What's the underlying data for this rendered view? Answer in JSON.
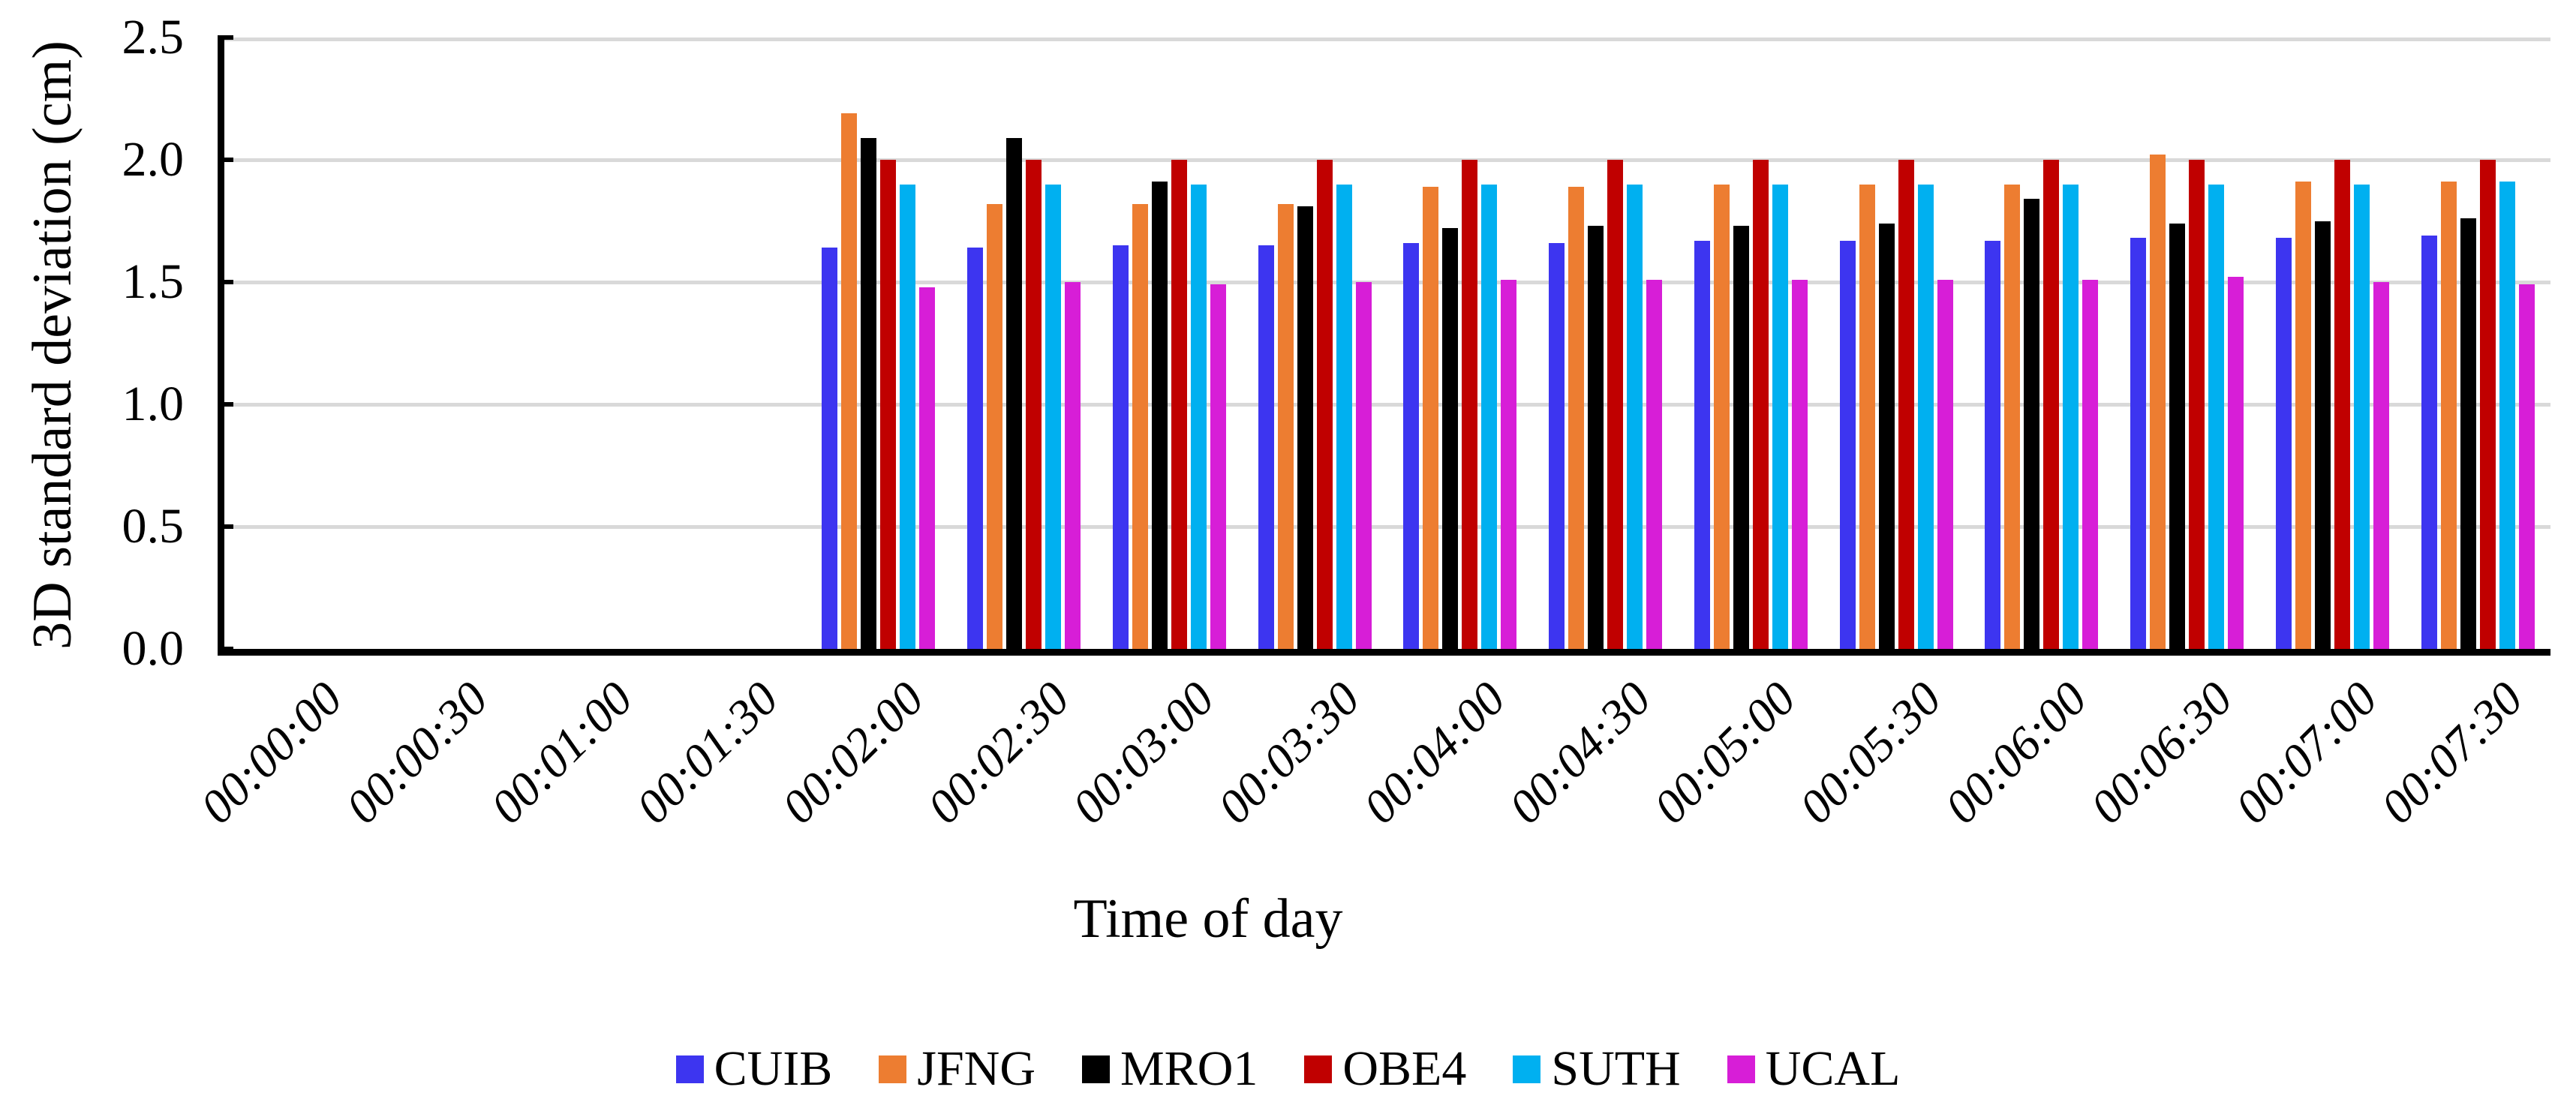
{
  "chart_data": {
    "type": "bar",
    "title": "",
    "xlabel": "Time of day",
    "ylabel": "3D standard deviation (cm)",
    "categories": [
      "00:00:00",
      "00:00:30",
      "00:01:00",
      "00:01:30",
      "00:02:00",
      "00:02:30",
      "00:03:00",
      "00:03:30",
      "00:04:00",
      "00:04:30",
      "00:05:00",
      "00:05:30",
      "00:06:00",
      "00:06:30",
      "00:07:00",
      "00:07:30"
    ],
    "series": [
      {
        "name": "CUIB",
        "color": "#3D35F0",
        "values": [
          null,
          null,
          null,
          null,
          1.64,
          1.64,
          1.65,
          1.65,
          1.66,
          1.66,
          1.67,
          1.67,
          1.67,
          1.68,
          1.68,
          1.69
        ]
      },
      {
        "name": "JFNG",
        "color": "#ED7D31",
        "values": [
          null,
          null,
          null,
          null,
          2.19,
          1.82,
          1.82,
          1.82,
          1.89,
          1.89,
          1.9,
          1.9,
          1.9,
          2.02,
          1.91,
          1.91
        ]
      },
      {
        "name": "MRO1",
        "color": "#000000",
        "values": [
          null,
          null,
          null,
          null,
          2.09,
          2.09,
          1.91,
          1.81,
          1.72,
          1.73,
          1.73,
          1.74,
          1.84,
          1.74,
          1.75,
          1.76
        ]
      },
      {
        "name": "OBE4",
        "color": "#C00000",
        "values": [
          null,
          null,
          null,
          null,
          2.0,
          2.0,
          2.0,
          2.0,
          2.0,
          2.0,
          2.0,
          2.0,
          2.0,
          2.0,
          2.0,
          2.0
        ]
      },
      {
        "name": "SUTH",
        "color": "#00B0F0",
        "values": [
          null,
          null,
          null,
          null,
          1.9,
          1.9,
          1.9,
          1.9,
          1.9,
          1.9,
          1.9,
          1.9,
          1.9,
          1.9,
          1.9,
          1.91
        ]
      },
      {
        "name": "UCAL",
        "color": "#D71ED7",
        "values": [
          null,
          null,
          null,
          null,
          1.48,
          1.5,
          1.49,
          1.5,
          1.51,
          1.51,
          1.51,
          1.51,
          1.51,
          1.52,
          1.5,
          1.49
        ]
      }
    ],
    "ylim": [
      0,
      2.5
    ],
    "ytick_step": 0.5,
    "ytick_labels": [
      "0.0",
      "0.5",
      "1.0",
      "1.5",
      "2.0",
      "2.5"
    ],
    "grid": true,
    "legend_position": "bottom"
  },
  "colors": {
    "background": "#FFFFFF",
    "gridline": "#D9D9D9",
    "axis": "#000000",
    "text": "#000000"
  }
}
